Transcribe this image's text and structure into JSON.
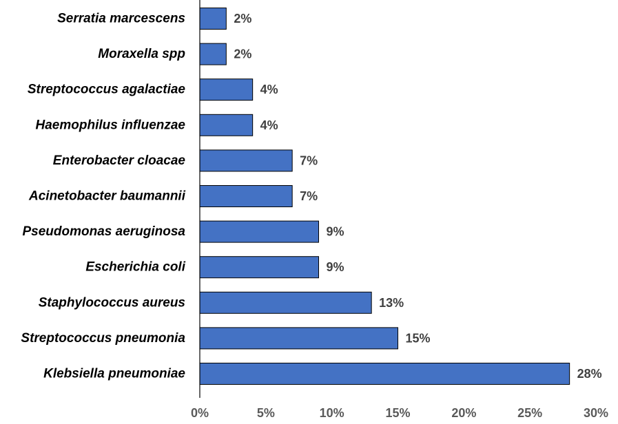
{
  "chart_data": {
    "type": "bar",
    "orientation": "horizontal",
    "categories": [
      "Serratia marcescens",
      "Moraxella spp",
      "Streptococcus agalactiae",
      "Haemophilus influenzae",
      "Enterobacter cloacae",
      "Acinetobacter baumannii",
      "Pseudomonas aeruginosa",
      "Escherichia coli",
      "Staphylococcus aureus",
      "Streptococcus pneumonia",
      "Klebsiella pneumoniae"
    ],
    "values": [
      2,
      2,
      4,
      4,
      7,
      7,
      9,
      9,
      13,
      15,
      28
    ],
    "data_labels": [
      "2%",
      "2%",
      "4%",
      "4%",
      "7%",
      "7%",
      "9%",
      "9%",
      "13%",
      "15%",
      "28%"
    ],
    "x_ticks": [
      0,
      5,
      10,
      15,
      20,
      25,
      30
    ],
    "x_tick_labels": [
      "0%",
      "5%",
      "10%",
      "15%",
      "20%",
      "25%",
      "30%"
    ],
    "xlim": [
      0,
      30
    ],
    "grid": false,
    "legend": "none",
    "bar_color": "#4472C4"
  }
}
